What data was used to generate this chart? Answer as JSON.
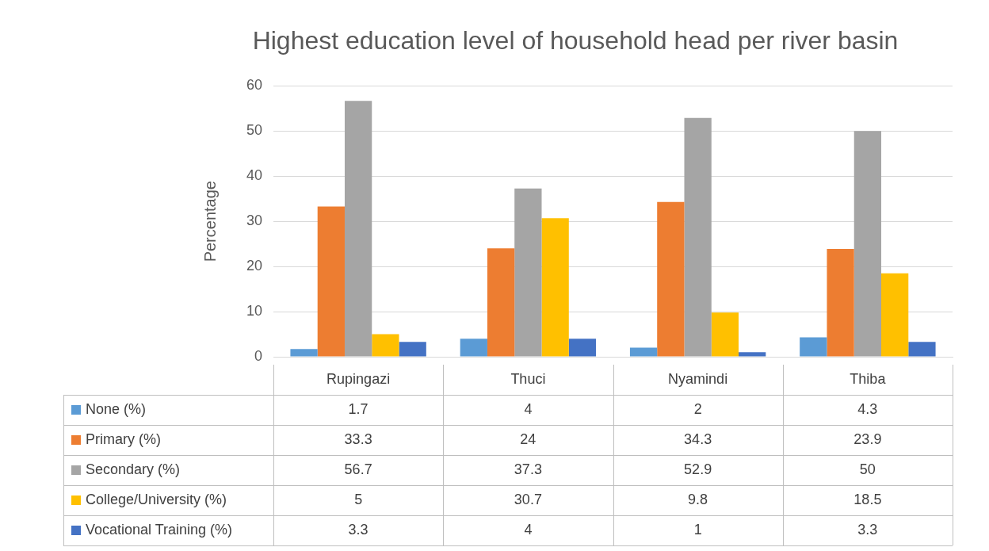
{
  "chart_data": {
    "type": "bar",
    "title": "Highest education level of household head per river basin",
    "ylabel": "Percentage",
    "categories": [
      "Rupingazi",
      "Thuci",
      "Nyamindi",
      "Thiba"
    ],
    "series": [
      {
        "name": "None (%)",
        "color": "#5b9bd5",
        "values": [
          1.7,
          4,
          2,
          4.3
        ]
      },
      {
        "name": "Primary (%)",
        "color": "#ed7d31",
        "values": [
          33.3,
          24,
          34.3,
          23.9
        ]
      },
      {
        "name": "Secondary (%)",
        "color": "#a5a5a5",
        "values": [
          56.7,
          37.3,
          52.9,
          50
        ]
      },
      {
        "name": "College/University (%)",
        "color": "#ffc000",
        "values": [
          5,
          30.7,
          9.8,
          18.5
        ]
      },
      {
        "name": "Vocational Training (%)",
        "color": "#4472c4",
        "values": [
          3.3,
          4,
          1,
          3.3
        ]
      }
    ],
    "ylim": [
      0,
      60
    ],
    "yticks": [
      0,
      10,
      20,
      30,
      40,
      50,
      60
    ],
    "grid": "y",
    "legend": "bottom",
    "data_labels": true
  }
}
